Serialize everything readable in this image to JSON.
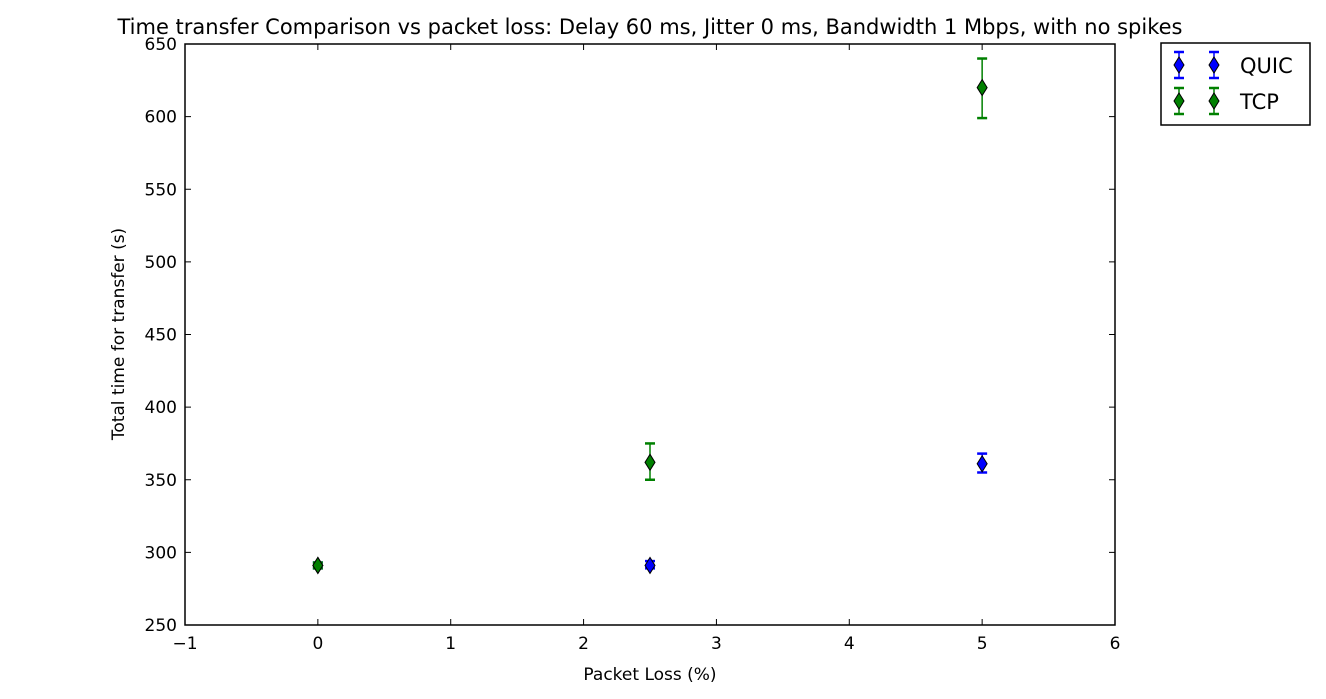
{
  "chart_data": {
    "type": "scatter",
    "title": "Time transfer Comparison vs packet loss: Delay 60 ms, Jitter 0 ms, Bandwidth 1 Mbps, with no spikes",
    "xlabel": "Packet Loss (%)",
    "ylabel": "Total time for transfer (s)",
    "xlim": [
      -1,
      6
    ],
    "ylim": [
      250,
      650
    ],
    "xticks": [
      -1,
      0,
      1,
      2,
      3,
      4,
      5,
      6
    ],
    "xtick_labels": [
      "−1",
      "0",
      "1",
      "2",
      "3",
      "4",
      "5",
      "6"
    ],
    "yticks": [
      250,
      300,
      350,
      400,
      450,
      500,
      550,
      600,
      650
    ],
    "ytick_labels": [
      "250",
      "300",
      "350",
      "400",
      "450",
      "500",
      "550",
      "600",
      "650"
    ],
    "grid": false,
    "legend_position": "outside-top-right",
    "marker": "diamond",
    "error_bars": true,
    "series": [
      {
        "name": "QUIC",
        "color": "#0000ff",
        "points": [
          {
            "x": 0,
            "y": 291,
            "err_low": 289,
            "err_high": 293
          },
          {
            "x": 2.5,
            "y": 291,
            "err_low": 289,
            "err_high": 294
          },
          {
            "x": 5,
            "y": 361,
            "err_low": 355,
            "err_high": 368
          }
        ]
      },
      {
        "name": "TCP",
        "color": "#008000",
        "points": [
          {
            "x": 0,
            "y": 291,
            "err_low": 289,
            "err_high": 293
          },
          {
            "x": 2.5,
            "y": 362,
            "err_low": 350,
            "err_high": 375
          },
          {
            "x": 5,
            "y": 620,
            "err_low": 599,
            "err_high": 640
          }
        ]
      }
    ]
  }
}
